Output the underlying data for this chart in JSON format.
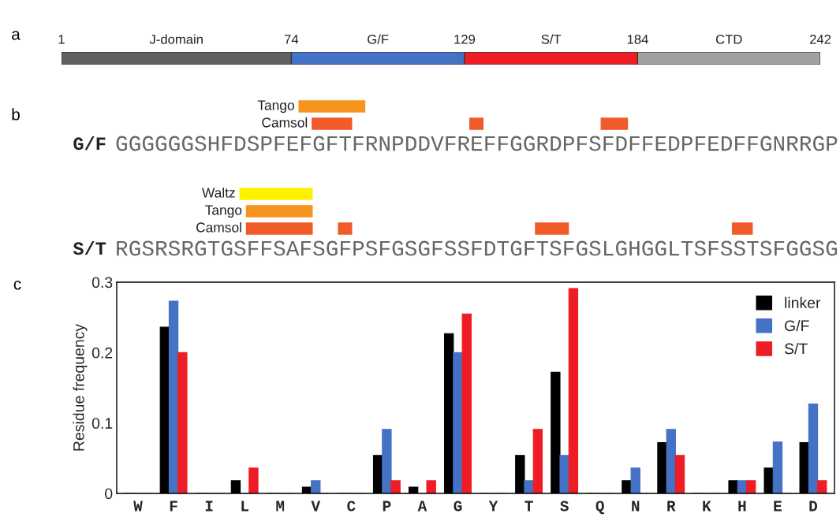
{
  "chart_data": [
    {
      "type": "bar",
      "orientation": "horizontal",
      "categories": [
        null
      ],
      "annotations": [
        "a"
      ],
      "xlim": [
        1,
        242
      ],
      "xticks": [
        1,
        74,
        129,
        184,
        242
      ],
      "tick_labels": "x",
      "series": [
        {
          "name": "J-domain",
          "color": "#5f6062",
          "base": [
            1
          ],
          "values": [
            73
          ]
        },
        {
          "name": "G/F",
          "color": "#4472c4",
          "base": [
            74
          ],
          "values": [
            55
          ]
        },
        {
          "name": "S/T",
          "color": "#ee1c25",
          "base": [
            129
          ],
          "values": [
            55
          ]
        },
        {
          "name": "CTD",
          "color": "#a0a1a3",
          "base": [
            184
          ],
          "values": [
            58
          ]
        }
      ]
    },
    {
      "type": "other",
      "annotations": [
        "b",
        "Tango",
        "Camsol",
        "G/F",
        "GGGGGGSHFDSPFEFGFTFRNPDDVFREFFGGRDPFSFDFFEDPFEDFFGNRRGP"
      ]
    },
    {
      "type": "other",
      "annotations": [
        "Waltz",
        "Tango",
        "Camsol",
        "S/T",
        "RGSRSRGTGSFFSAFSGFPSFGSGFSSFDTGFTSFGSLGHGGLTSFSSTSFGGSG"
      ]
    },
    {
      "type": "bar",
      "annotations": [
        "c"
      ],
      "ylabel": "Residue frequency",
      "ylim": [
        0,
        0.3
      ],
      "yticks": [
        0,
        0.1,
        0.2,
        0.3
      ],
      "legend": "top right",
      "categories": [
        "W",
        "F",
        "I",
        "L",
        "M",
        "V",
        "C",
        "P",
        "A",
        "G",
        "Y",
        "T",
        "S",
        "Q",
        "N",
        "R",
        "K",
        "H",
        "E",
        "D"
      ],
      "series": [
        {
          "name": "linker",
          "color": "#000000",
          "values": [
            0,
            0.236,
            0,
            0.018,
            0,
            0.009,
            0,
            0.054,
            0.009,
            0.227,
            0,
            0.054,
            0.172,
            0,
            0.018,
            0.072,
            0,
            0.018,
            0.036,
            0.072
          ]
        },
        {
          "name": "G/F",
          "color": "#4472c4",
          "values": [
            0,
            0.273,
            0,
            0,
            0,
            0.018,
            0,
            0.091,
            0,
            0.2,
            0,
            0.018,
            0.054,
            0,
            0.036,
            0.091,
            0,
            0.018,
            0.073,
            0.127
          ]
        },
        {
          "name": "S/T",
          "color": "#ee1c25",
          "values": [
            0,
            0.2,
            0,
            0.036,
            0,
            0,
            0,
            0.018,
            0.018,
            0.255,
            0,
            0.091,
            0.291,
            0,
            0,
            0.054,
            0,
            0.018,
            0,
            0.018
          ]
        }
      ]
    }
  ]
}
